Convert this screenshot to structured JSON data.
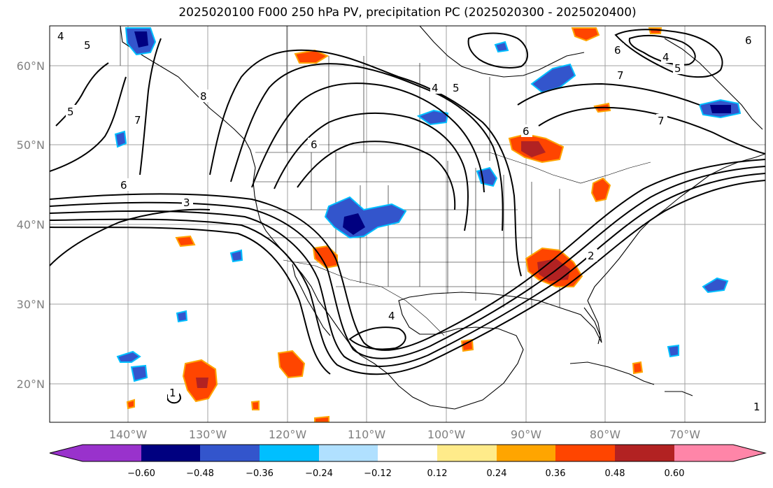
{
  "title": "2025020100 F000 250 hPa PV, precipitation PC (2025020300 - 2025020400)",
  "map": {
    "lat_labels": [
      "60°N",
      "50°N",
      "40°N",
      "30°N",
      "20°N"
    ],
    "lon_labels": [
      "140°W",
      "130°W",
      "120°W",
      "110°W",
      "100°W",
      "90°W",
      "80°W",
      "70°W"
    ],
    "grid_color": "#a0a0a0",
    "label_color": "#808080",
    "pv_contour_labels": [
      "4",
      "5",
      "6",
      "7",
      "8",
      "6",
      "5",
      "3",
      "4",
      "5",
      "6",
      "7",
      "4",
      "5",
      "6",
      "7",
      "4",
      "1",
      "1",
      "2",
      "6"
    ],
    "colors": {
      "strong_positive": "#b22222",
      "positive": "#ff4500",
      "weak_positive": "#ffa500",
      "strong_negative": "#000080",
      "negative": "#3355cc",
      "weak_negative": "#00bfff"
    }
  },
  "colorbar": {
    "colors": [
      "#9932cc",
      "#000080",
      "#3355cc",
      "#00bfff",
      "#b0e0ff",
      "#ffffff",
      "#ffeb8a",
      "#ffa500",
      "#ff4500",
      "#b22222",
      "#ff85a8"
    ],
    "ticks": [
      "−0.60",
      "−0.48",
      "−0.36",
      "−0.24",
      "−0.12",
      "0.12",
      "0.24",
      "0.36",
      "0.48",
      "0.60"
    ]
  }
}
